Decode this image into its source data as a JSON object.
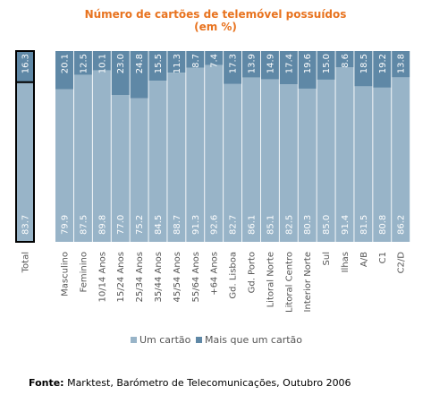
{
  "chart_data": {
    "type": "bar",
    "stacked": true,
    "percent": true,
    "title": "Número de cartões de telemóvel possuídos",
    "subtitle": "(em %)",
    "categories": [
      "Total",
      "Masculino",
      "Feminino",
      "10/14 Anos",
      "15/24 Anos",
      "25/34 Anos",
      "35/44 Anos",
      "45/54 Anos",
      "55/64 Anos",
      "+64 Anos",
      "Gd. Lisboa",
      "Gd. Porto",
      "Litoral Norte",
      "Litoral Centro",
      "Interior Norte",
      "Sul",
      "Ilhas",
      "A/B",
      "C1",
      "C2/D"
    ],
    "series": [
      {
        "name": "Um cartão",
        "color": "#98b4c8",
        "values": [
          83.7,
          79.9,
          87.5,
          89.8,
          77.0,
          75.2,
          84.5,
          88.7,
          91.3,
          92.6,
          82.7,
          86.1,
          85.1,
          82.5,
          80.3,
          85.0,
          91.4,
          81.5,
          80.8,
          86.2
        ]
      },
      {
        "name": "Mais que um cartão",
        "color": "#5f88a6",
        "values": [
          16.3,
          20.1,
          12.5,
          10.1,
          23.0,
          24.8,
          15.5,
          11.3,
          8.7,
          7.4,
          17.3,
          13.9,
          14.9,
          17.4,
          19.6,
          15.0,
          8.6,
          18.5,
          19.2,
          13.8
        ]
      }
    ],
    "ylim": [
      0,
      100
    ],
    "legend_position": "bottom"
  },
  "footer": {
    "label": "Fonte:",
    "text": "Marktest, Barómetro de Telecomunicações, Outubro 2006"
  }
}
